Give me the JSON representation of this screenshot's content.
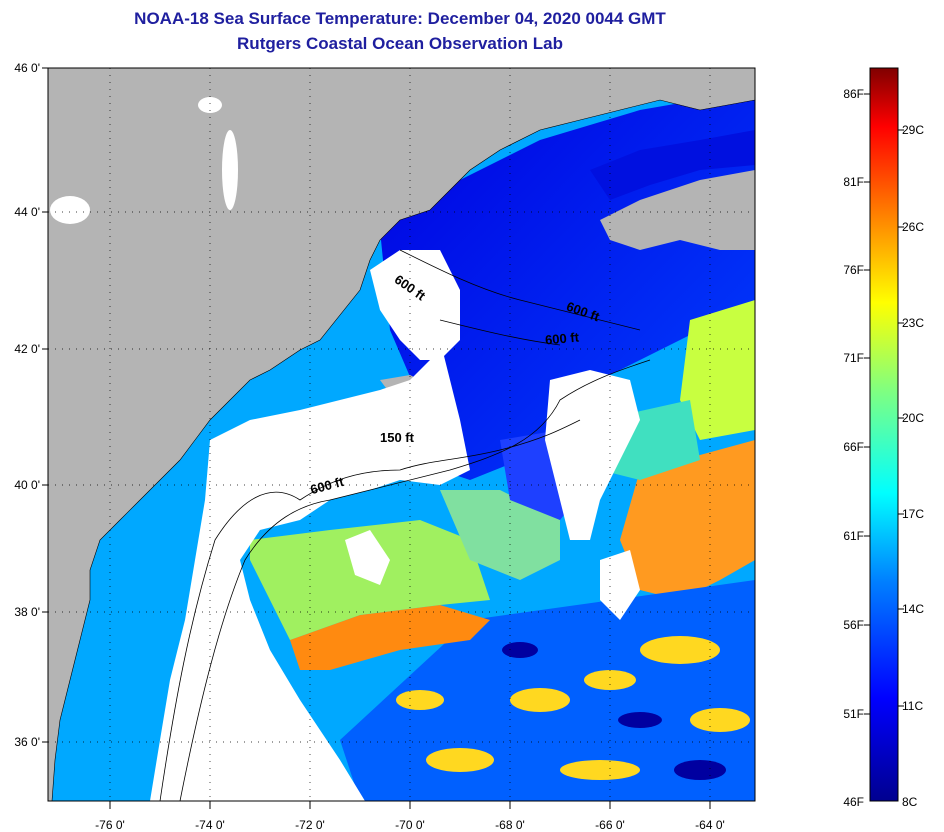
{
  "header": {
    "title": "NOAA-18 Sea Surface Temperature:  December 04, 2020 0044 GMT",
    "subtitle": "Rutgers Coastal Ocean Observation Lab"
  },
  "map": {
    "lat_labels": [
      "46 0'",
      "44 0'",
      "42 0'",
      "40 0'",
      "38 0'",
      "36 0'"
    ],
    "lon_labels": [
      "-76 0'",
      "-74 0'",
      "-72 0'",
      "-70 0'",
      "-68 0'",
      "-66 0'",
      "-64 0'"
    ],
    "lat_range": [
      35,
      46
    ],
    "lon_range": [
      -77,
      -63
    ],
    "contours": [
      {
        "label": "600 ft",
        "lon": -71.4,
        "lat": 39.9
      },
      {
        "label": "150 ft",
        "lon": -69.7,
        "lat": 40.6
      },
      {
        "label": "600 ft",
        "lon": -69.6,
        "lat": 42.9
      },
      {
        "label": "600 ft",
        "lon": -67.3,
        "lat": 42.6
      },
      {
        "label": "600 ft",
        "lon": -67.7,
        "lat": 42.15
      }
    ]
  },
  "colorbar": {
    "fahrenheit_labels": [
      "86F",
      "81F",
      "76F",
      "71F",
      "66F",
      "61F",
      "56F",
      "51F",
      "46F"
    ],
    "celsius_labels": [
      "29C",
      "26C",
      "23C",
      "20C",
      "17C",
      "14C",
      "11C",
      "8C"
    ],
    "range_c": [
      8,
      30.5
    ],
    "colors": {
      "dark_blue": "#00008f",
      "blue": "#0000ff",
      "light_blue": "#0080ff",
      "cyan": "#00ffff",
      "yellow": "#ffff00",
      "orange": "#ff8000",
      "red": "#ff0000",
      "dark_red": "#800000"
    }
  },
  "colors": {
    "land": "#b4b4b4",
    "cloud": "#ffffff",
    "title": "#1f1f9f"
  }
}
